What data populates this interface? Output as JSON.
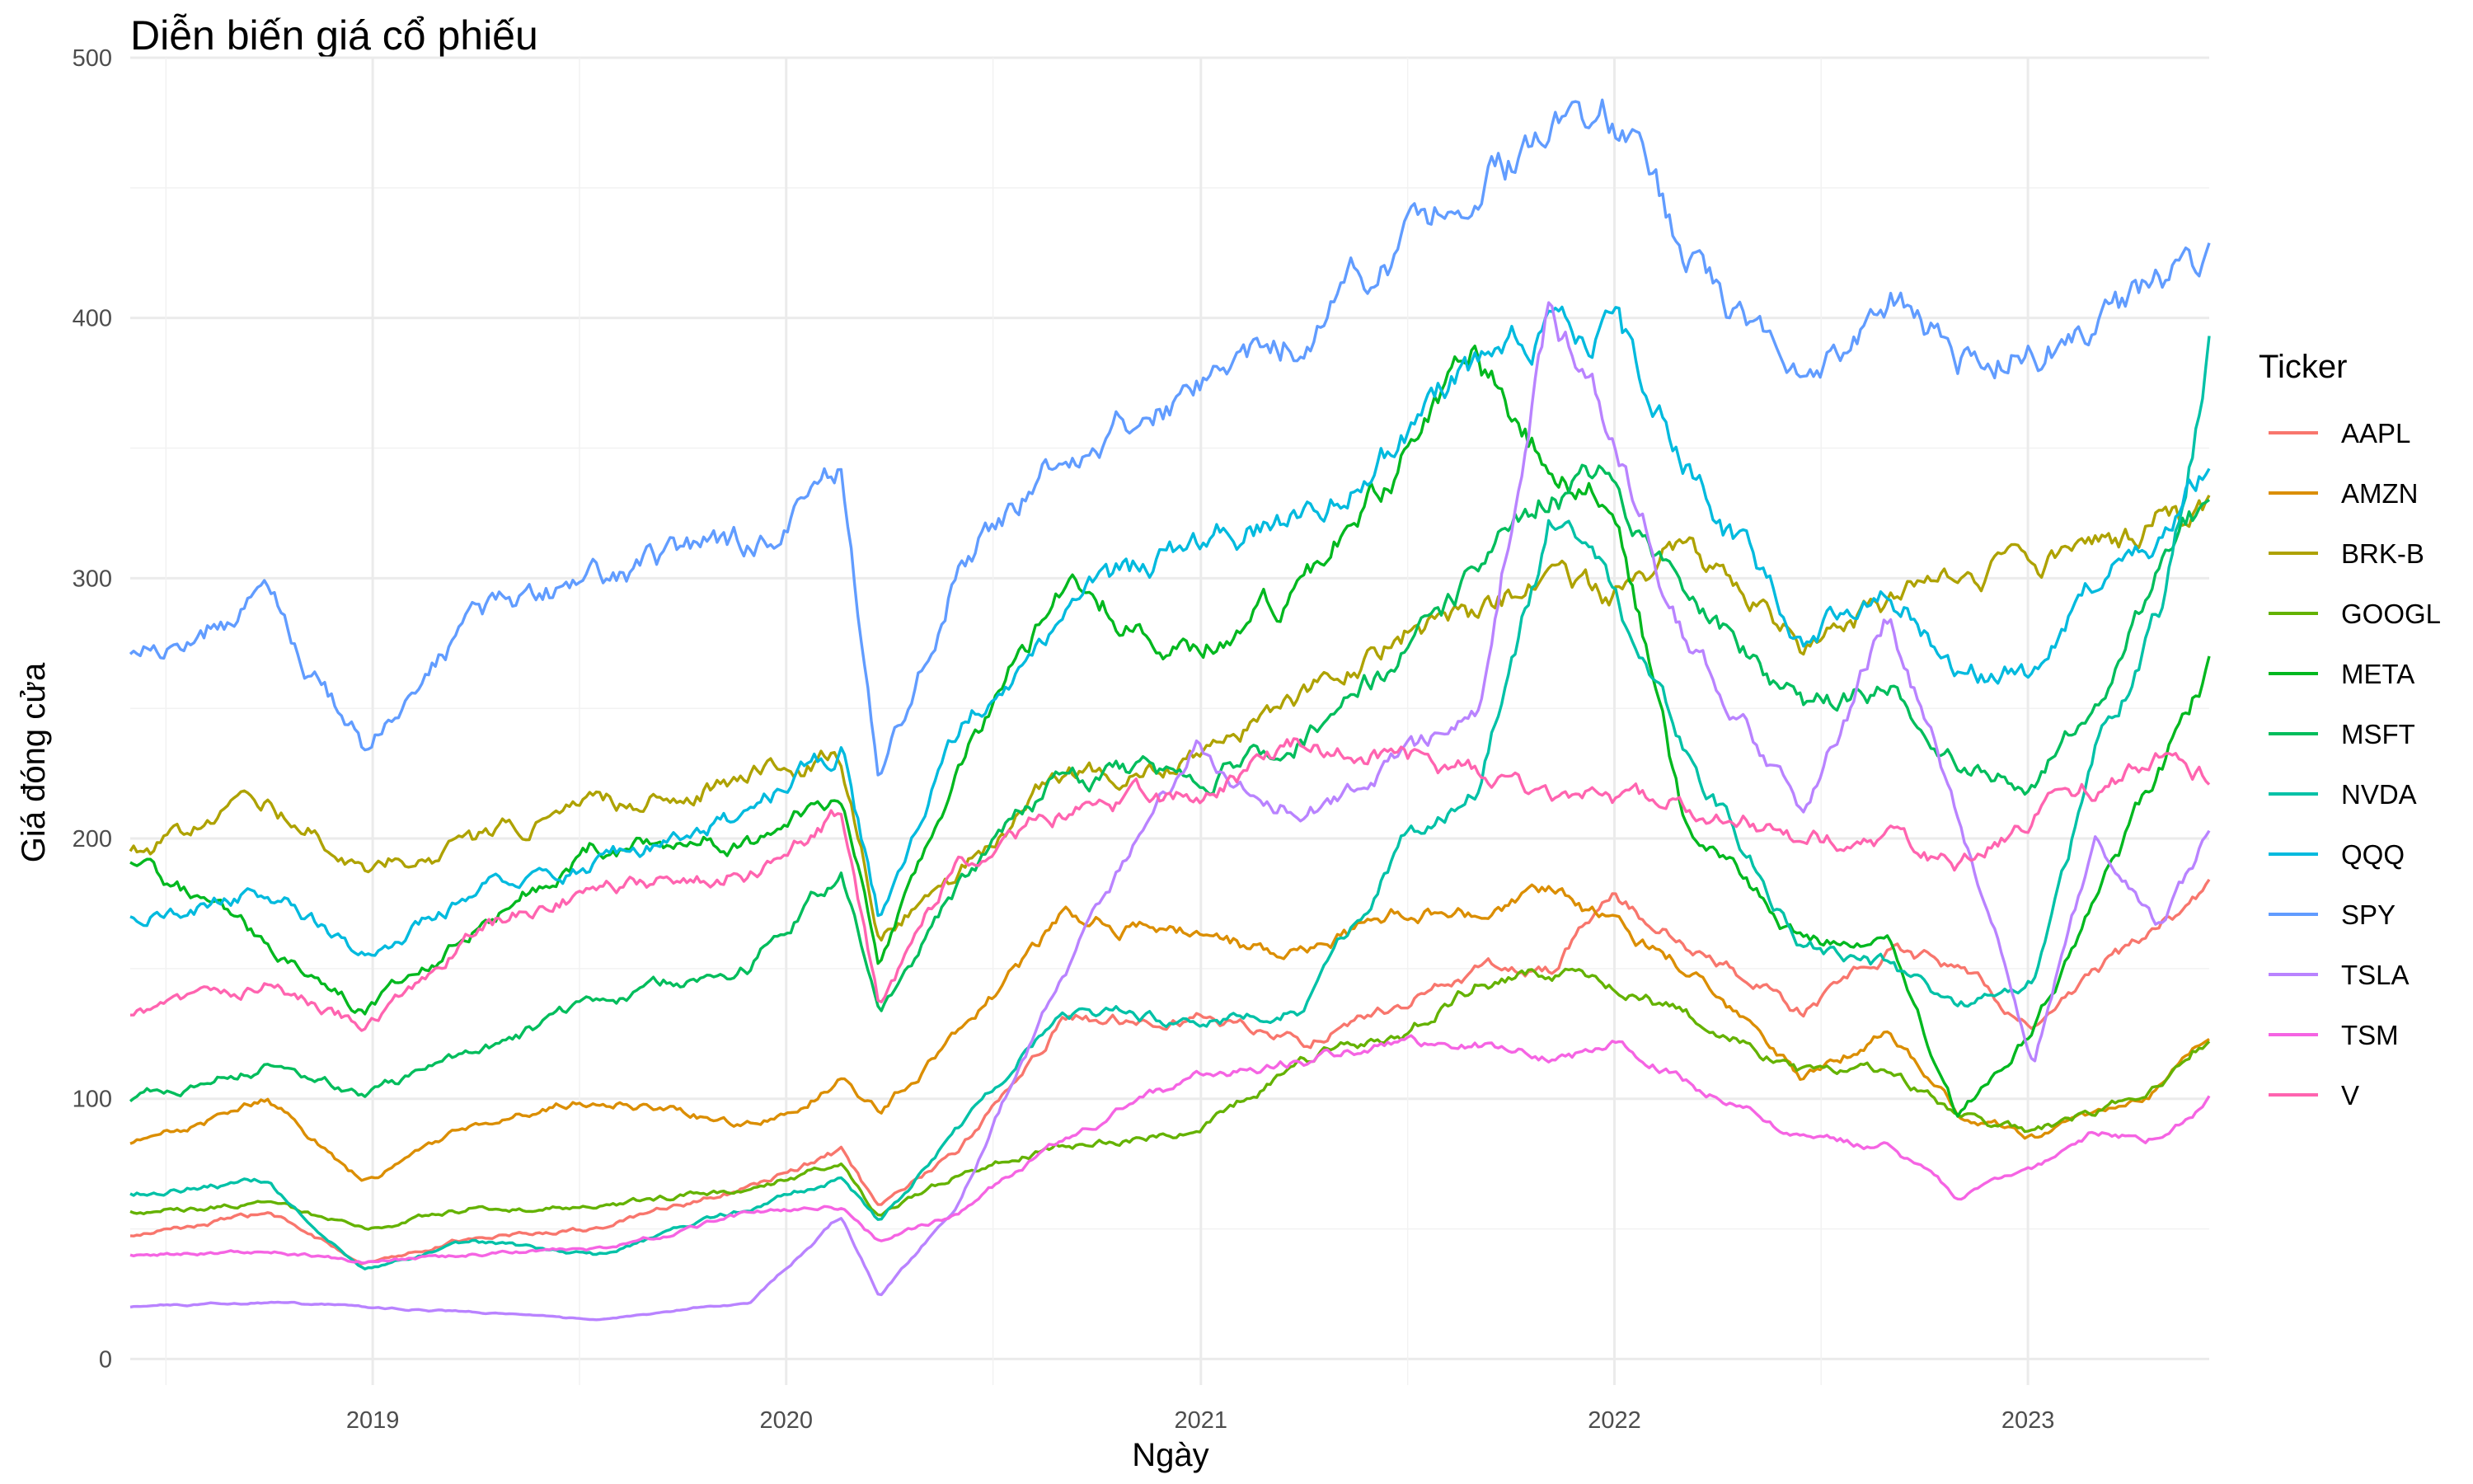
{
  "chart_data": {
    "type": "line",
    "title": "Diễn biến giá cổ phiếu",
    "xlabel": "Ngày",
    "ylabel": "Giá đóng cửa",
    "xlim": [
      "2018-06-01",
      "2023-06-10"
    ],
    "ylim": [
      -10,
      500
    ],
    "x_ticks": [
      {
        "date": "2019-01-01",
        "label": "2019"
      },
      {
        "date": "2020-01-01",
        "label": "2020"
      },
      {
        "date": "2021-01-01",
        "label": "2021"
      },
      {
        "date": "2022-01-01",
        "label": "2022"
      },
      {
        "date": "2023-01-01",
        "label": "2023"
      }
    ],
    "y_ticks": [
      0,
      100,
      200,
      300,
      400,
      500
    ],
    "grid": true,
    "legend": {
      "title": "Ticker",
      "position": "right"
    },
    "x": [
      "2018-06-01",
      "2018-10-01",
      "2018-12-24",
      "2019-04-01",
      "2019-07-15",
      "2019-12-01",
      "2020-02-19",
      "2020-03-23",
      "2020-06-01",
      "2020-09-01",
      "2020-12-31",
      "2021-04-01",
      "2021-06-30",
      "2021-09-01",
      "2021-11-05",
      "2021-12-31",
      "2022-03-01",
      "2022-06-16",
      "2022-09-01",
      "2022-10-31",
      "2023-01-06",
      "2023-03-01",
      "2023-05-01",
      "2023-06-10"
    ],
    "series": [
      {
        "name": "AAPL",
        "color": "#F8766D",
        "values": [
          47,
          56,
          37,
          47,
          50,
          66,
          80,
          57,
          80,
          130,
          132,
          122,
          137,
          150,
          150,
          178,
          160,
          133,
          157,
          150,
          127,
          148,
          168,
          178
        ]
      },
      {
        "name": "AMZN",
        "color": "#DB8E00",
        "values": [
          82,
          100,
          68,
          90,
          100,
          90,
          108,
          95,
          125,
          170,
          162,
          155,
          172,
          170,
          178,
          166,
          152,
          107,
          127,
          95,
          86,
          94,
          105,
          122
        ]
      },
      {
        "name": "BRK-B",
        "color": "#AEA200",
        "values": [
          193,
          215,
          190,
          198,
          212,
          225,
          231,
          165,
          185,
          225,
          232,
          255,
          280,
          285,
          300,
          290,
          315,
          275,
          290,
          300,
          305,
          310,
          325,
          323
        ]
      },
      {
        "name": "GOOGL",
        "color": "#64B200",
        "values": [
          56,
          60,
          50,
          58,
          58,
          66,
          76,
          55,
          71,
          82,
          88,
          115,
          125,
          144,
          148,
          145,
          133,
          110,
          110,
          94,
          87,
          95,
          108,
          124
        ]
      },
      {
        "name": "META",
        "color": "#00B81F",
        "values": [
          193,
          160,
          133,
          165,
          198,
          200,
          215,
          150,
          230,
          295,
          273,
          295,
          347,
          380,
          342,
          336,
          210,
          160,
          162,
          93,
          128,
          175,
          230,
          265
        ]
      },
      {
        "name": "MSFT",
        "color": "#00BD5C",
        "values": [
          100,
          113,
          101,
          117,
          137,
          152,
          187,
          135,
          182,
          225,
          222,
          240,
          271,
          300,
          335,
          335,
          295,
          250,
          260,
          230,
          223,
          250,
          305,
          330
        ]
      },
      {
        "name": "NVDA",
        "color": "#00C1A7",
        "values": [
          64,
          68,
          35,
          45,
          40,
          58,
          70,
          53,
          88,
          135,
          130,
          135,
          200,
          220,
          320,
          294,
          235,
          160,
          150,
          135,
          145,
          232,
          290,
          390
        ]
      },
      {
        "name": "QQQ",
        "color": "#00BADE",
        "values": [
          171,
          180,
          155,
          180,
          190,
          210,
          235,
          170,
          240,
          290,
          313,
          325,
          355,
          380,
          395,
          397,
          345,
          275,
          300,
          267,
          262,
          300,
          320,
          348
        ]
      },
      {
        "name": "SPY",
        "color": "#619CFF",
        "values": [
          272,
          290,
          235,
          285,
          300,
          315,
          338,
          222,
          305,
          350,
          373,
          395,
          428,
          452,
          468,
          476,
          425,
          368,
          410,
          385,
          390,
          395,
          412,
          420
        ]
      },
      {
        "name": "TSLA",
        "color": "#B983FF",
        "values": [
          20,
          22,
          20,
          18,
          15,
          22,
          55,
          24,
          60,
          150,
          235,
          210,
          230,
          245,
          407,
          352,
          280,
          210,
          285,
          210,
          115,
          200,
          165,
          203
        ]
      },
      {
        "name": "TSM",
        "color": "#F564E3",
        "values": [
          40,
          42,
          37,
          40,
          42,
          56,
          58,
          45,
          56,
          85,
          109,
          115,
          120,
          120,
          115,
          120,
          108,
          85,
          82,
          62,
          73,
          88,
          85,
          100
        ]
      },
      {
        "name": "V",
        "color": "#FF64B0",
        "values": [
          132,
          145,
          128,
          165,
          180,
          188,
          212,
          135,
          192,
          210,
          218,
          234,
          232,
          227,
          218,
          216,
          215,
          200,
          200,
          190,
          210,
          220,
          232,
          222
        ]
      }
    ]
  }
}
